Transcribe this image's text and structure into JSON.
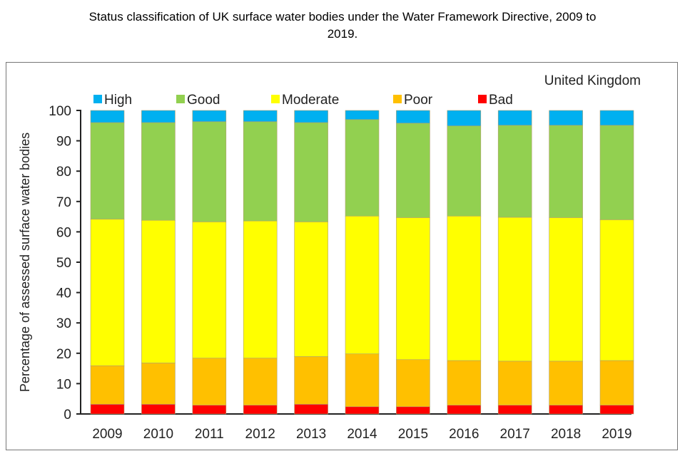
{
  "title_line1": "Status classification of UK surface water bodies under the Water Framework Directive, 2009 to",
  "title_line2": "2019.",
  "chart_data": {
    "type": "bar",
    "stacked": true,
    "annotation": "United Kingdom",
    "xlabel": "",
    "ylabel": "Percentage of assessed surface water bodies",
    "ylim": [
      0,
      100
    ],
    "yticks": [
      0,
      10,
      20,
      30,
      40,
      50,
      60,
      70,
      80,
      90,
      100
    ],
    "grid": false,
    "legend_position": "top",
    "categories": [
      "2009",
      "2010",
      "2011",
      "2012",
      "2013",
      "2014",
      "2015",
      "2016",
      "2017",
      "2018",
      "2019"
    ],
    "series": [
      {
        "name": "Bad",
        "color": "#ff0000",
        "values": [
          3.2,
          3.2,
          2.9,
          2.9,
          3.2,
          2.4,
          2.4,
          2.9,
          2.9,
          2.9,
          2.9
        ]
      },
      {
        "name": "Poor",
        "color": "#ffc000",
        "values": [
          12.7,
          13.6,
          15.5,
          15.5,
          15.7,
          17.4,
          15.5,
          14.7,
          14.5,
          14.5,
          14.7
        ]
      },
      {
        "name": "Moderate",
        "color": "#ffff00",
        "values": [
          48.3,
          47.0,
          44.9,
          45.2,
          44.4,
          45.4,
          46.8,
          47.6,
          47.4,
          47.3,
          46.4
        ]
      },
      {
        "name": "Good",
        "color": "#92d050",
        "values": [
          31.8,
          32.2,
          33.0,
          32.7,
          32.7,
          31.8,
          31.1,
          29.7,
          30.3,
          30.4,
          31.1
        ]
      },
      {
        "name": "High",
        "color": "#00b0f0",
        "values": [
          4.0,
          4.0,
          3.7,
          3.7,
          4.0,
          3.0,
          4.2,
          5.1,
          4.9,
          4.9,
          4.9
        ]
      }
    ],
    "legend_order": [
      "High",
      "Good",
      "Moderate",
      "Poor",
      "Bad"
    ]
  }
}
